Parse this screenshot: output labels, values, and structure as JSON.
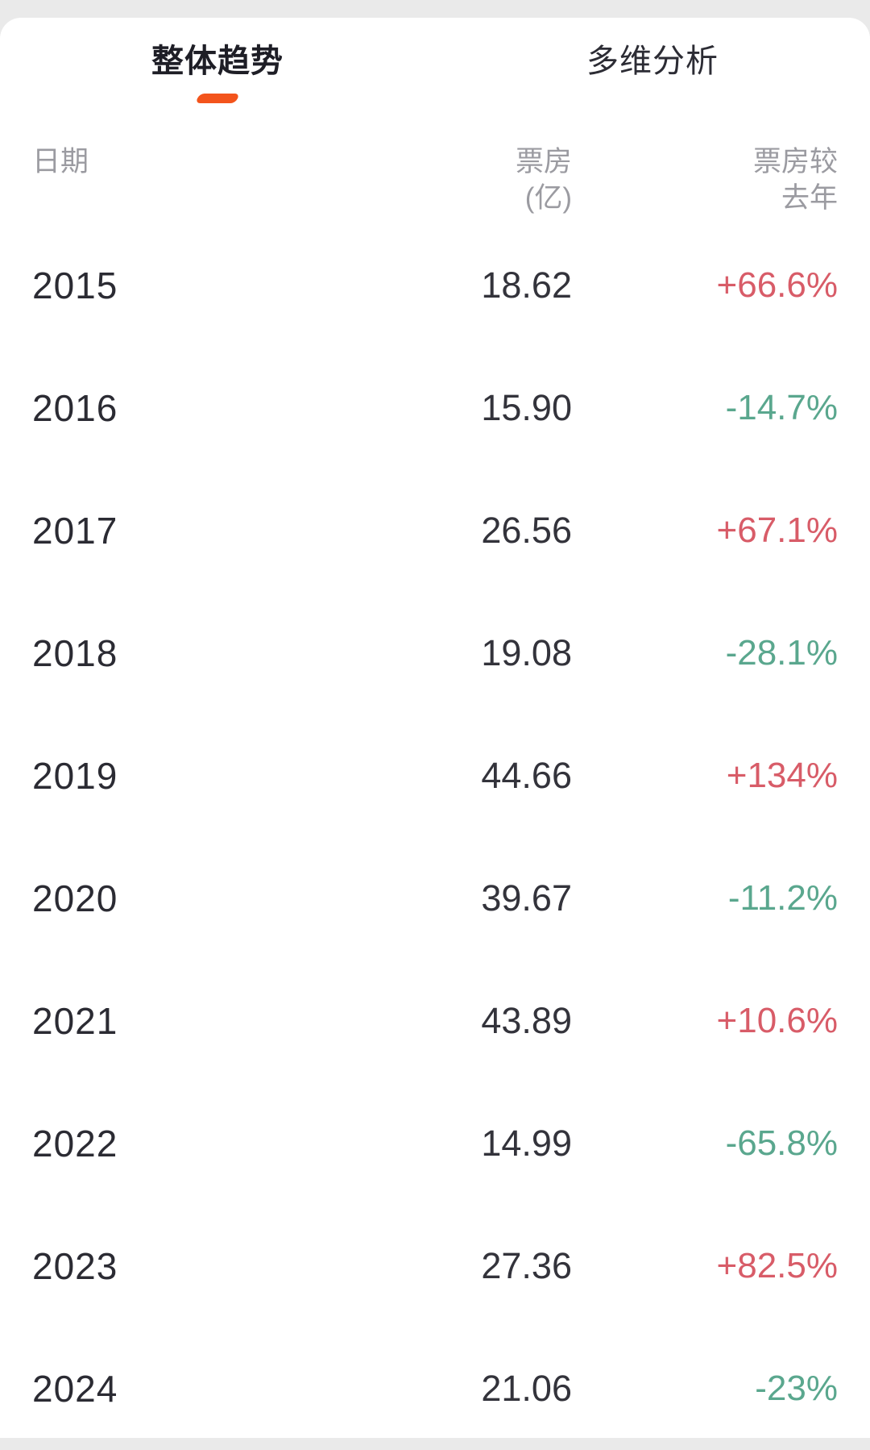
{
  "tabs": [
    {
      "label": "整体趋势",
      "active": true
    },
    {
      "label": "多维分析",
      "active": false
    }
  ],
  "table": {
    "headers": {
      "date": "日期",
      "boxoffice": [
        "票房",
        "(亿)"
      ],
      "yoy": [
        "票房较",
        "去年"
      ]
    },
    "rows": [
      {
        "year": "2015",
        "boxoffice": "18.62",
        "yoy": "+66.6%",
        "direction": "up"
      },
      {
        "year": "2016",
        "boxoffice": "15.90",
        "yoy": "-14.7%",
        "direction": "down"
      },
      {
        "year": "2017",
        "boxoffice": "26.56",
        "yoy": "+67.1%",
        "direction": "up"
      },
      {
        "year": "2018",
        "boxoffice": "19.08",
        "yoy": "-28.1%",
        "direction": "down"
      },
      {
        "year": "2019",
        "boxoffice": "44.66",
        "yoy": "+134%",
        "direction": "up"
      },
      {
        "year": "2020",
        "boxoffice": "39.67",
        "yoy": "-11.2%",
        "direction": "down"
      },
      {
        "year": "2021",
        "boxoffice": "43.89",
        "yoy": "+10.6%",
        "direction": "up"
      },
      {
        "year": "2022",
        "boxoffice": "14.99",
        "yoy": "-65.8%",
        "direction": "down"
      },
      {
        "year": "2023",
        "boxoffice": "27.36",
        "yoy": "+82.5%",
        "direction": "up"
      },
      {
        "year": "2024",
        "boxoffice": "21.06",
        "yoy": "-23%",
        "direction": "down"
      }
    ]
  },
  "colors": {
    "up": "#d85c68",
    "down": "#5aa78e",
    "accent": "#f3541c",
    "text_dark": "#2b2b33",
    "header_gray": "#9b9ba1",
    "page_background": "#eaeaea",
    "card_background": "#ffffff"
  }
}
